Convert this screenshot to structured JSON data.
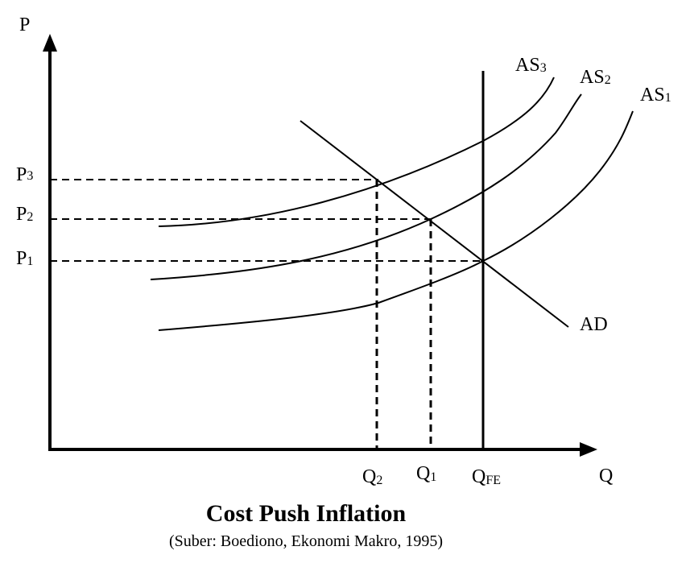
{
  "diagram": {
    "title": "Cost Push Inflation",
    "source": "(Suber: Boediono, Ekonomi Makro, 1995)",
    "axes": {
      "y_label": "P",
      "x_label": "Q"
    },
    "price_levels": [
      {
        "main": "P",
        "sub": "3"
      },
      {
        "main": "P",
        "sub": "2"
      },
      {
        "main": "P",
        "sub": "1"
      }
    ],
    "quantity_levels": [
      {
        "main": "Q",
        "sub": "2"
      },
      {
        "main": "Q",
        "sub": "1"
      },
      {
        "main": "Q",
        "sub": "FE"
      }
    ],
    "curves": {
      "as3": {
        "main": "AS",
        "sub": "3"
      },
      "as2": {
        "main": "AS",
        "sub": "2"
      },
      "as1": {
        "main": "AS",
        "sub": "1"
      },
      "ad": "AD"
    }
  }
}
